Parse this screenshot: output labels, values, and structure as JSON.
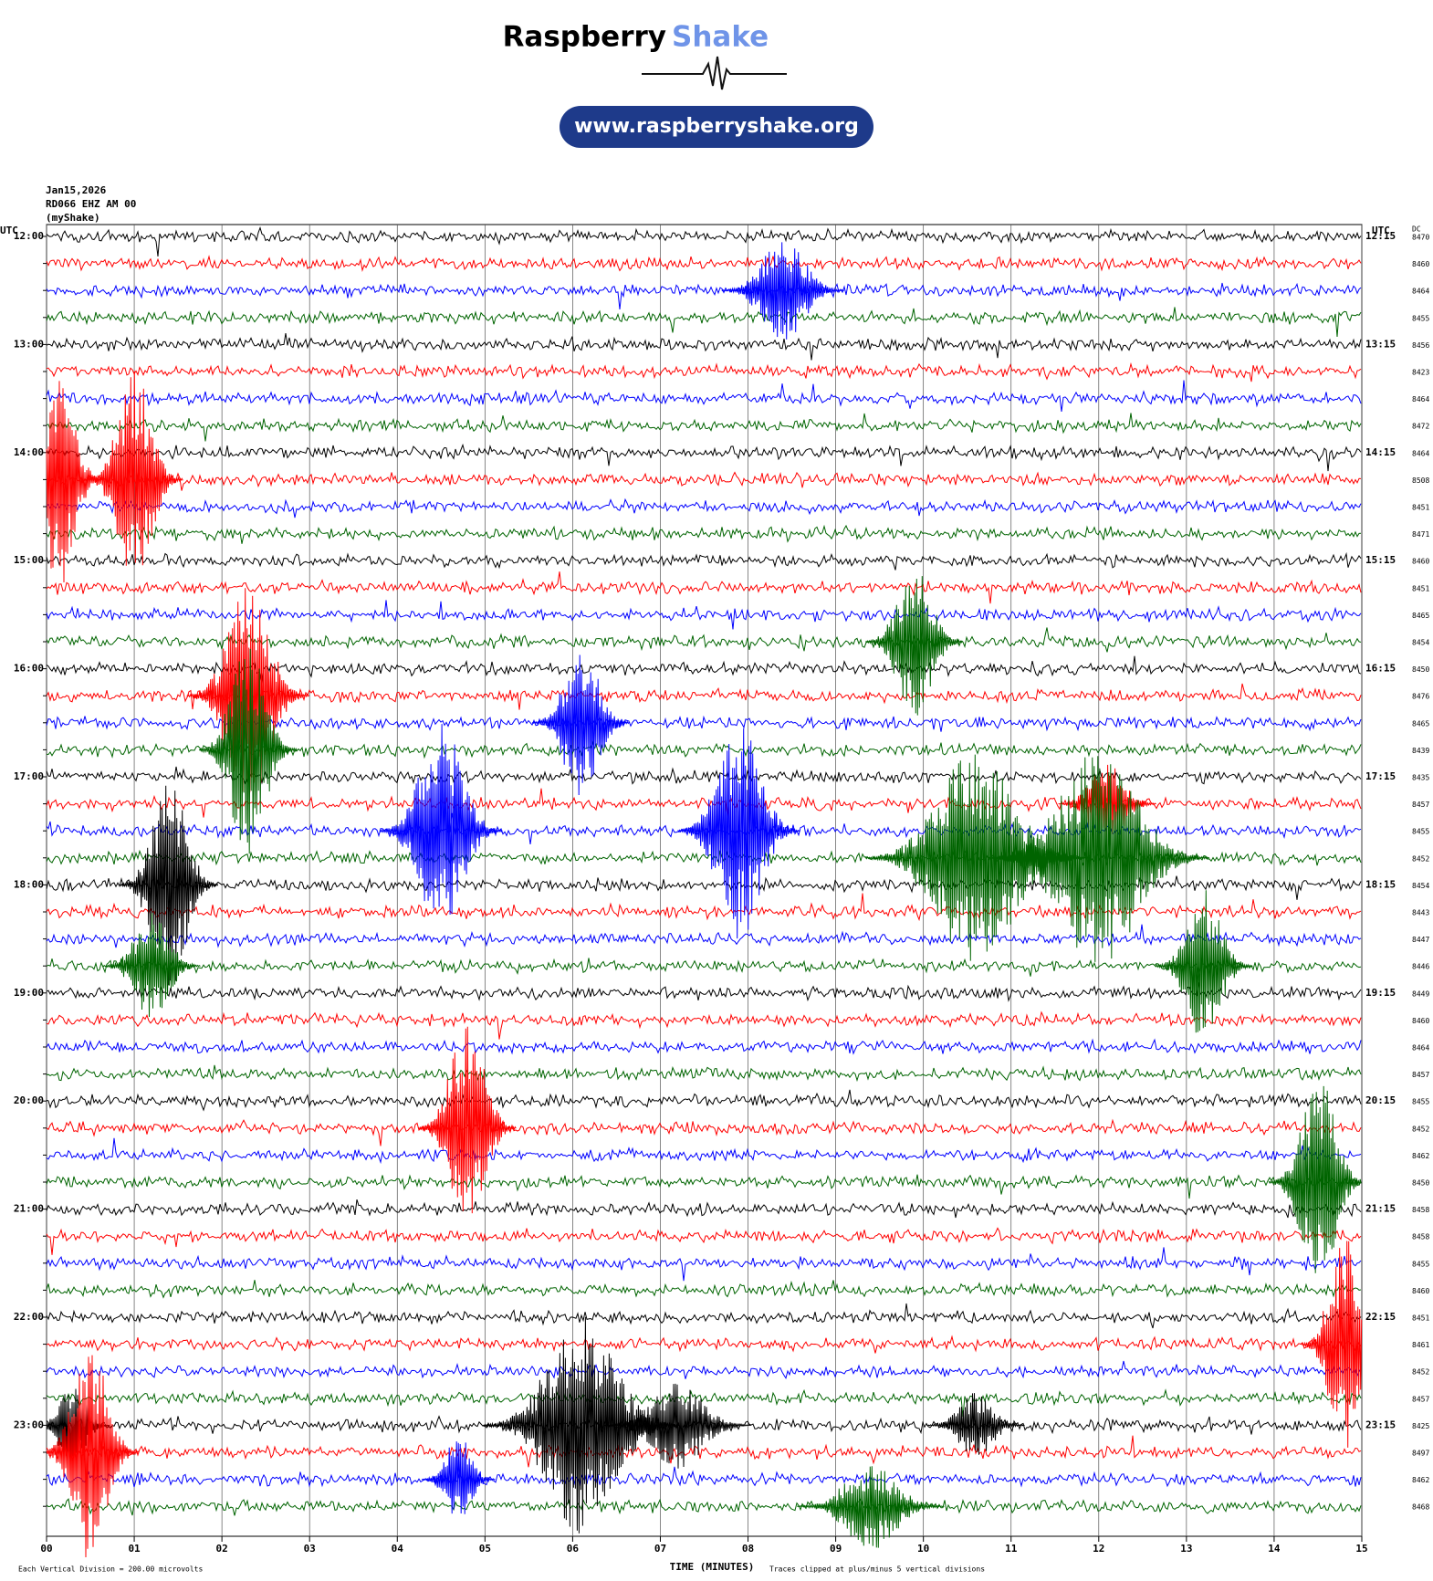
{
  "logo": {
    "name": "Raspberry",
    "name_accent": "Shake",
    "url": "www.raspberryshake.org"
  },
  "chart_data": {
    "type": "helicorder",
    "date": "Jan15,2026",
    "station": "RD066 EHZ AM 00",
    "source": "(myShake)",
    "left_axis_label": "UTC",
    "right_axis_label": "UTC",
    "dc_label": "DC",
    "x_label": "TIME (MINUTES)",
    "scale_note": "Each Vertical Division = 200.00 microvolts",
    "clip_note": "Traces clipped at plus/minus 5 vertical divisions",
    "colors": [
      "#000000",
      "#ff0000",
      "#0000ff",
      "#006400"
    ],
    "xlim": [
      0,
      15
    ],
    "xticks": [
      {
        "value": 0,
        "label": "00"
      },
      {
        "value": 1,
        "label": "01"
      },
      {
        "value": 2,
        "label": "02"
      },
      {
        "value": 3,
        "label": "03"
      },
      {
        "value": 4,
        "label": "04"
      },
      {
        "value": 5,
        "label": "05"
      },
      {
        "value": 6,
        "label": "06"
      },
      {
        "value": 7,
        "label": "07"
      },
      {
        "value": 8,
        "label": "08"
      },
      {
        "value": 9,
        "label": "09"
      },
      {
        "value": 10,
        "label": "10"
      },
      {
        "value": 11,
        "label": "11"
      },
      {
        "value": 12,
        "label": "12"
      },
      {
        "value": 13,
        "label": "13"
      },
      {
        "value": 14,
        "label": "14"
      },
      {
        "value": 15,
        "label": "15"
      }
    ],
    "row_labels_left": [
      "12:00",
      "13:00",
      "14:00",
      "15:00",
      "16:00",
      "17:00",
      "18:00",
      "19:00",
      "20:00",
      "21:00",
      "22:00",
      "23:00"
    ],
    "row_labels_right": [
      "12:15",
      "13:15",
      "14:15",
      "15:15",
      "16:15",
      "17:15",
      "18:15",
      "19:15",
      "20:15",
      "21:15",
      "22:15",
      "23:15"
    ],
    "dc": [
      8470,
      8460,
      8464,
      8455,
      8456,
      8423,
      8464,
      8472,
      8464,
      8508,
      8451,
      8471,
      8460,
      8451,
      8465,
      8454,
      8450,
      8476,
      8465,
      8439,
      8435,
      8457,
      8455,
      8452,
      8454,
      8443,
      8447,
      8446,
      8449,
      8460,
      8464,
      8457,
      8455,
      8452,
      8462,
      8450,
      8458,
      8458,
      8455,
      8460,
      8451,
      8461,
      8452,
      8457,
      8425,
      8497,
      8462,
      8468
    ],
    "clip": 5,
    "events": [
      {
        "row": 2,
        "minute": 8.4,
        "amplitude": 2.5,
        "duration": 0.5
      },
      {
        "row": 9,
        "minute": 0.15,
        "amplitude": 5,
        "duration": 0.35
      },
      {
        "row": 9,
        "minute": 1.0,
        "amplitude": 5,
        "duration": 0.4
      },
      {
        "row": 15,
        "minute": 9.9,
        "amplitude": 3.5,
        "duration": 0.4
      },
      {
        "row": 17,
        "minute": 2.3,
        "amplitude": 5,
        "duration": 0.5
      },
      {
        "row": 18,
        "minute": 6.1,
        "amplitude": 3.5,
        "duration": 0.4
      },
      {
        "row": 19,
        "minute": 2.3,
        "amplitude": 5,
        "duration": 0.4
      },
      {
        "row": 21,
        "minute": 12.1,
        "amplitude": 2,
        "duration": 0.4
      },
      {
        "row": 22,
        "minute": 4.5,
        "amplitude": 5,
        "duration": 0.5
      },
      {
        "row": 22,
        "minute": 7.9,
        "amplitude": 5,
        "duration": 0.5
      },
      {
        "row": 23,
        "minute": 10.6,
        "amplitude": 5,
        "duration": 0.9
      },
      {
        "row": 23,
        "minute": 12.0,
        "amplitude": 5,
        "duration": 0.9
      },
      {
        "row": 24,
        "minute": 1.4,
        "amplitude": 5,
        "duration": 0.4
      },
      {
        "row": 27,
        "minute": 1.2,
        "amplitude": 2.5,
        "duration": 0.4
      },
      {
        "row": 27,
        "minute": 13.2,
        "amplitude": 3.5,
        "duration": 0.4
      },
      {
        "row": 33,
        "minute": 4.8,
        "amplitude": 5,
        "duration": 0.4
      },
      {
        "row": 35,
        "minute": 14.5,
        "amplitude": 5,
        "duration": 0.4
      },
      {
        "row": 41,
        "minute": 14.8,
        "amplitude": 5,
        "duration": 0.35
      },
      {
        "row": 44,
        "minute": 0.3,
        "amplitude": 2,
        "duration": 0.3
      },
      {
        "row": 44,
        "minute": 6.1,
        "amplitude": 5,
        "duration": 0.8
      },
      {
        "row": 44,
        "minute": 7.2,
        "amplitude": 2,
        "duration": 0.6
      },
      {
        "row": 44,
        "minute": 10.6,
        "amplitude": 1.5,
        "duration": 0.4
      },
      {
        "row": 45,
        "minute": 0.5,
        "amplitude": 5,
        "duration": 0.4
      },
      {
        "row": 46,
        "minute": 4.7,
        "amplitude": 2,
        "duration": 0.3
      },
      {
        "row": 47,
        "minute": 9.4,
        "amplitude": 2,
        "duration": 0.6
      }
    ]
  }
}
